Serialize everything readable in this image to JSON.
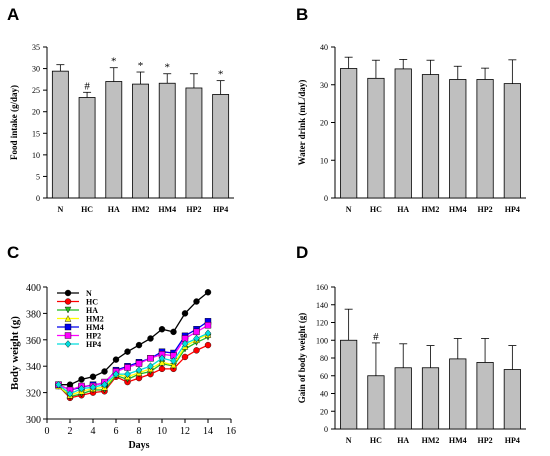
{
  "chart_data": [
    {
      "panel": "A",
      "type": "bar",
      "categories": [
        "N",
        "HC",
        "HA",
        "HM2",
        "HM4",
        "HP2",
        "HP4"
      ],
      "values": [
        29.4,
        23.3,
        27.0,
        26.4,
        26.6,
        25.5,
        24.0
      ],
      "errors": [
        1.5,
        1.2,
        3.2,
        2.8,
        2.2,
        3.3,
        3.2
      ],
      "annotations": [
        "",
        "#",
        "*",
        "*",
        "*",
        "",
        "*"
      ],
      "ylabel": "Food intake (g/day)",
      "ylim": [
        0,
        35
      ],
      "yticks": [
        0,
        5,
        10,
        15,
        20,
        25,
        30,
        35
      ],
      "bar_color": "#bfbfbf"
    },
    {
      "panel": "B",
      "type": "bar",
      "categories": [
        "N",
        "HC",
        "HA",
        "HM2",
        "HM4",
        "HP2",
        "HP4"
      ],
      "values": [
        34.3,
        31.7,
        34.2,
        32.7,
        31.4,
        31.4,
        30.3
      ],
      "errors": [
        3.0,
        4.8,
        2.5,
        3.8,
        3.5,
        3.0,
        6.3
      ],
      "annotations": [
        "",
        "",
        "",
        "",
        "",
        "",
        ""
      ],
      "ylabel": "Water drink (mL/day)",
      "ylim": [
        0,
        40
      ],
      "yticks": [
        0,
        10,
        20,
        30,
        40
      ],
      "bar_color": "#bfbfbf"
    },
    {
      "panel": "C",
      "type": "line",
      "xlabel": "Days",
      "ylabel": "Body weight (g)",
      "xlim": [
        0,
        16
      ],
      "ylim": [
        300,
        400
      ],
      "xticks": [
        0,
        2,
        4,
        6,
        8,
        10,
        12,
        14,
        16
      ],
      "yticks": [
        300,
        320,
        340,
        360,
        380,
        400
      ],
      "x": [
        1,
        2,
        3,
        4,
        5,
        6,
        7,
        8,
        9,
        10,
        11,
        12,
        13,
        14
      ],
      "series": [
        {
          "name": "N",
          "color": "#000000",
          "marker": "circle",
          "values": [
            326,
            326,
            330,
            332,
            336,
            345,
            351,
            356,
            361,
            368,
            366,
            380,
            389,
            396
          ]
        },
        {
          "name": "HC",
          "color": "#ff0000",
          "marker": "circle",
          "values": [
            325,
            316,
            318,
            320,
            321,
            332,
            328,
            331,
            334,
            338,
            338,
            347,
            352,
            356
          ]
        },
        {
          "name": "HA",
          "color": "#22bb22",
          "marker": "triangle-down",
          "values": [
            325,
            317,
            319,
            322,
            322,
            333,
            330,
            334,
            336,
            342,
            340,
            353,
            358,
            362
          ]
        },
        {
          "name": "HM2",
          "color": "#ffff00",
          "marker": "triangle-up",
          "values": [
            325,
            318,
            321,
            323,
            324,
            334,
            332,
            335,
            338,
            343,
            341,
            355,
            360,
            364
          ]
        },
        {
          "name": "HM4",
          "color": "#0000ee",
          "marker": "square",
          "values": [
            326,
            322,
            324,
            326,
            327,
            337,
            340,
            343,
            346,
            351,
            350,
            363,
            368,
            374
          ]
        },
        {
          "name": "HP2",
          "color": "#ff00ff",
          "marker": "square",
          "values": [
            326,
            322,
            325,
            325,
            328,
            336,
            339,
            342,
            346,
            349,
            348,
            361,
            366,
            371
          ]
        },
        {
          "name": "HP4",
          "color": "#00dddd",
          "marker": "diamond",
          "values": [
            326,
            319,
            323,
            324,
            326,
            334,
            334,
            337,
            340,
            346,
            344,
            357,
            361,
            365
          ]
        }
      ]
    },
    {
      "panel": "D",
      "type": "bar",
      "categories": [
        "N",
        "HC",
        "HA",
        "HM2",
        "HM4",
        "HP2",
        "HP4"
      ],
      "values": [
        100,
        60,
        69,
        69,
        79,
        75,
        67
      ],
      "errors": [
        35,
        37,
        27,
        25,
        23,
        27,
        27
      ],
      "annotations": [
        "",
        "#",
        "",
        "",
        "",
        "",
        ""
      ],
      "ylabel": "Gain of body weight (g)",
      "ylim": [
        0,
        160
      ],
      "yticks": [
        0,
        20,
        40,
        60,
        80,
        100,
        120,
        140,
        160
      ],
      "bar_color": "#bfbfbf"
    }
  ]
}
